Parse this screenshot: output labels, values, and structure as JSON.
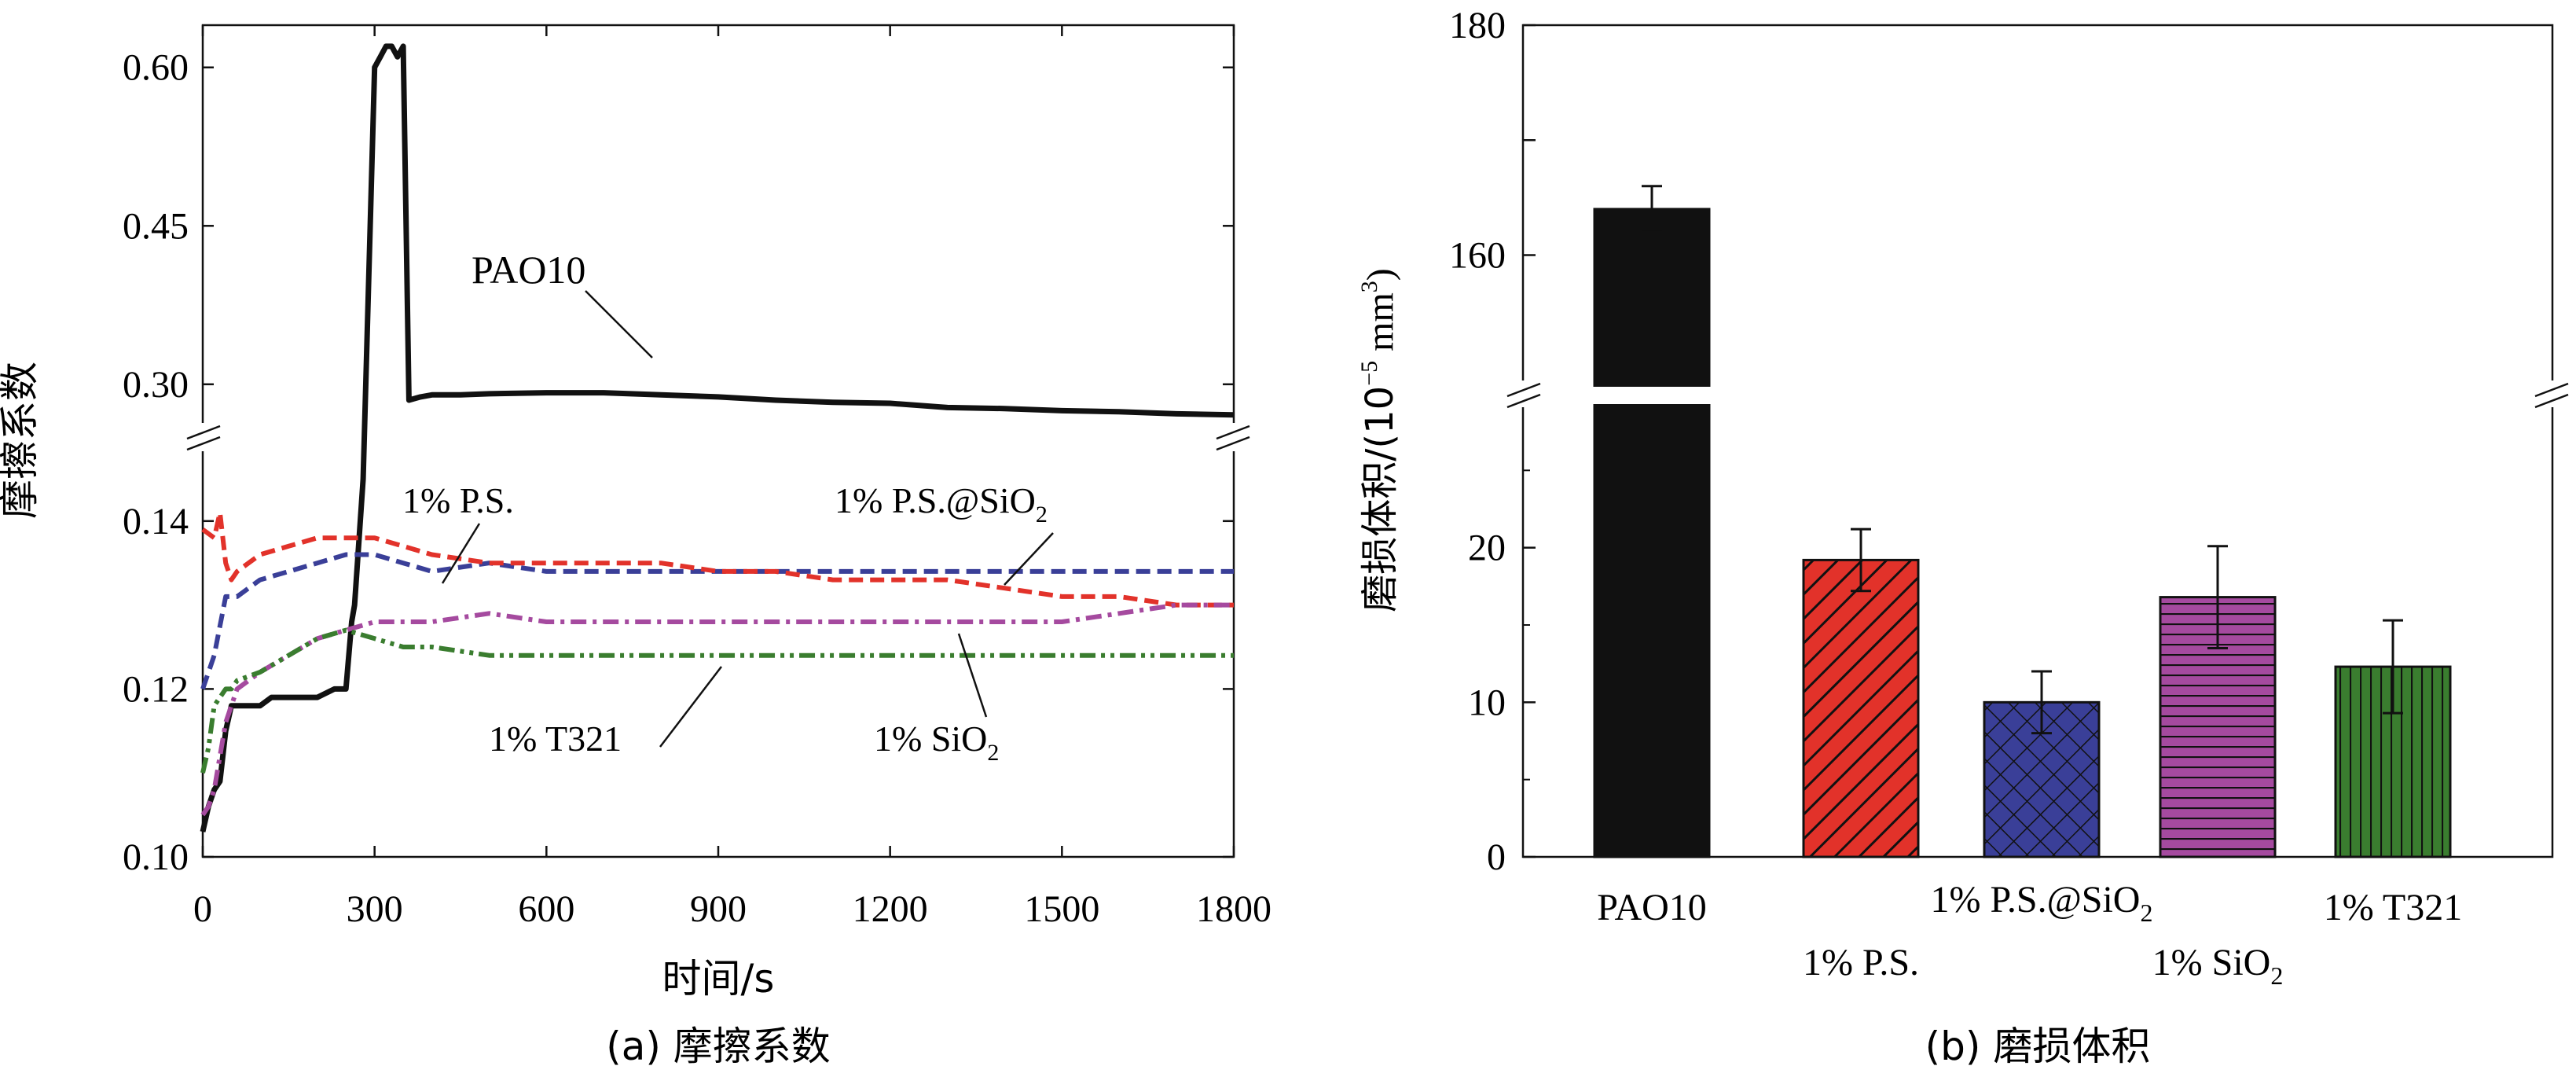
{
  "chart_data": [
    {
      "id": "a",
      "type": "line",
      "caption": "(a) 摩擦系数",
      "xlabel": "时间/s",
      "ylabel": "摩擦系数",
      "xlim": [
        0,
        1800
      ],
      "xticks": [
        0,
        300,
        600,
        900,
        1200,
        1500,
        1800
      ],
      "xtick_labels": [
        "0",
        "300",
        "600",
        "900",
        "1200",
        "1500",
        "1800"
      ],
      "ylim_upper": [
        0.25,
        0.64
      ],
      "ylim_lower": [
        0.1,
        0.15
      ],
      "yticks_upper": [
        0.3,
        0.45,
        0.6
      ],
      "ytick_labels_upper": [
        "0.30",
        "0.45",
        "0.60"
      ],
      "yticks_lower": [
        0.1,
        0.12,
        0.14
      ],
      "ytick_labels_lower": [
        "0.10",
        "0.12",
        "0.14"
      ],
      "axis_break": true,
      "series": [
        {
          "name": "PAO10",
          "color": "#111111",
          "style": "solid",
          "x": [
            0,
            10,
            20,
            30,
            40,
            50,
            60,
            80,
            100,
            120,
            150,
            180,
            200,
            230,
            250,
            260,
            265,
            280,
            300,
            310,
            320,
            330,
            340,
            350,
            360,
            380,
            400,
            450,
            500,
            600,
            700,
            800,
            900,
            1000,
            1100,
            1200,
            1300,
            1400,
            1500,
            1600,
            1700,
            1800
          ],
          "y": [
            0.103,
            0.106,
            0.108,
            0.109,
            0.115,
            0.118,
            0.118,
            0.118,
            0.118,
            0.119,
            0.119,
            0.119,
            0.119,
            0.12,
            0.12,
            0.128,
            0.13,
            0.145,
            0.6,
            0.61,
            0.62,
            0.62,
            0.61,
            0.62,
            0.285,
            0.288,
            0.29,
            0.29,
            0.291,
            0.292,
            0.292,
            0.29,
            0.288,
            0.285,
            0.283,
            0.282,
            0.278,
            0.277,
            0.275,
            0.274,
            0.272,
            0.271
          ]
        },
        {
          "name": "1% P.S.",
          "color": "#3a3f98",
          "style": "dashed",
          "x": [
            0,
            20,
            40,
            60,
            80,
            100,
            150,
            200,
            250,
            300,
            350,
            400,
            500,
            600,
            700,
            800,
            900,
            1000,
            1100,
            1200,
            1300,
            1400,
            1500,
            1600,
            1700,
            1800
          ],
          "y": [
            0.12,
            0.124,
            0.131,
            0.131,
            0.132,
            0.133,
            0.134,
            0.135,
            0.136,
            0.136,
            0.135,
            0.134,
            0.135,
            0.134,
            0.134,
            0.134,
            0.134,
            0.134,
            0.134,
            0.134,
            0.134,
            0.134,
            0.134,
            0.134,
            0.134,
            0.134
          ]
        },
        {
          "name": "1% P.S.@SiO2",
          "color": "#e2322a",
          "style": "dashed",
          "x": [
            0,
            20,
            30,
            40,
            50,
            60,
            80,
            100,
            150,
            200,
            250,
            300,
            350,
            400,
            500,
            600,
            700,
            800,
            900,
            1000,
            1100,
            1200,
            1300,
            1400,
            1500,
            1600,
            1700,
            1800
          ],
          "y": [
            0.139,
            0.138,
            0.141,
            0.135,
            0.133,
            0.134,
            0.135,
            0.136,
            0.137,
            0.138,
            0.138,
            0.138,
            0.137,
            0.136,
            0.135,
            0.135,
            0.135,
            0.135,
            0.134,
            0.134,
            0.133,
            0.133,
            0.133,
            0.132,
            0.131,
            0.131,
            0.13,
            0.13
          ]
        },
        {
          "name": "1% SiO2",
          "color": "#a54a9f",
          "style": "dashdot",
          "x": [
            0,
            10,
            20,
            30,
            40,
            50,
            60,
            100,
            150,
            200,
            250,
            300,
            350,
            400,
            500,
            600,
            700,
            800,
            900,
            1000,
            1100,
            1200,
            1300,
            1400,
            1500,
            1600,
            1700,
            1800
          ],
          "y": [
            0.105,
            0.106,
            0.108,
            0.112,
            0.116,
            0.118,
            0.12,
            0.122,
            0.124,
            0.126,
            0.127,
            0.128,
            0.128,
            0.128,
            0.129,
            0.128,
            0.128,
            0.128,
            0.128,
            0.128,
            0.128,
            0.128,
            0.128,
            0.128,
            0.128,
            0.129,
            0.13,
            0.13
          ]
        },
        {
          "name": "1% T321",
          "color": "#3a7d2f",
          "style": "dashdotdot",
          "x": [
            0,
            10,
            20,
            30,
            40,
            50,
            60,
            100,
            150,
            200,
            250,
            300,
            350,
            400,
            500,
            600,
            700,
            800,
            900,
            1000,
            1100,
            1200,
            1300,
            1400,
            1500,
            1600,
            1700,
            1800
          ],
          "y": [
            0.11,
            0.113,
            0.118,
            0.119,
            0.12,
            0.12,
            0.121,
            0.122,
            0.124,
            0.126,
            0.127,
            0.126,
            0.125,
            0.125,
            0.124,
            0.124,
            0.124,
            0.124,
            0.124,
            0.124,
            0.124,
            0.124,
            0.124,
            0.124,
            0.124,
            0.124,
            0.124,
            0.124
          ]
        }
      ],
      "annotations": [
        {
          "text": "PAO10",
          "arrow_to_x": 800,
          "arrow_to_y": 0.29
        },
        {
          "text": "1% P.S.",
          "arrow_to_x": 420,
          "arrow_to_y": 0.134
        },
        {
          "text": "1% P.S.@SiO",
          "sub": "2",
          "arrow_to_x": 1400,
          "arrow_to_y": 0.133
        },
        {
          "text": "1% T321",
          "arrow_to_x": 930,
          "arrow_to_y": 0.124
        },
        {
          "text": "1% SiO",
          "sub": "2",
          "arrow_to_x": 1320,
          "arrow_to_y": 0.128
        }
      ]
    },
    {
      "id": "b",
      "type": "bar",
      "caption": "(b) 磨损体积",
      "ylabel": "磨损体积/(10",
      "ylabel_sup": "−5",
      "ylabel_mid": " mm",
      "ylabel_sup2": "3",
      "ylabel_end": ")",
      "categories": [
        "PAO10",
        "1% P.S.",
        "1% P.S.@SiO2",
        "1% SiO2",
        "1% T321"
      ],
      "category_labels": [
        {
          "text": "PAO10",
          "sub": ""
        },
        {
          "text": "1% P.S.",
          "sub": ""
        },
        {
          "text": "1% P.S.@SiO",
          "sub": "2"
        },
        {
          "text": "1% SiO",
          "sub": "2"
        },
        {
          "text": "1% T321",
          "sub": ""
        }
      ],
      "values": [
        164,
        19.2,
        10.0,
        16.8,
        12.3
      ],
      "errors": [
        2.0,
        2.0,
        2.0,
        3.3,
        3.0
      ],
      "colors": [
        "#111111",
        "#e2322a",
        "#3a3f98",
        "#a54a9f",
        "#3a7d2f"
      ],
      "patterns": [
        "solid",
        "diagonal",
        "crosshatch",
        "horizontal",
        "vertical"
      ],
      "ylim_lower": [
        0,
        30
      ],
      "ylim_upper": [
        148,
        180
      ],
      "yticks_lower": [
        0,
        10,
        20
      ],
      "ytick_labels_lower": [
        "0",
        "10",
        "20"
      ],
      "yticks_upper": [
        160,
        180
      ],
      "ytick_labels_upper": [
        "160",
        "180"
      ],
      "axis_break": true
    }
  ]
}
